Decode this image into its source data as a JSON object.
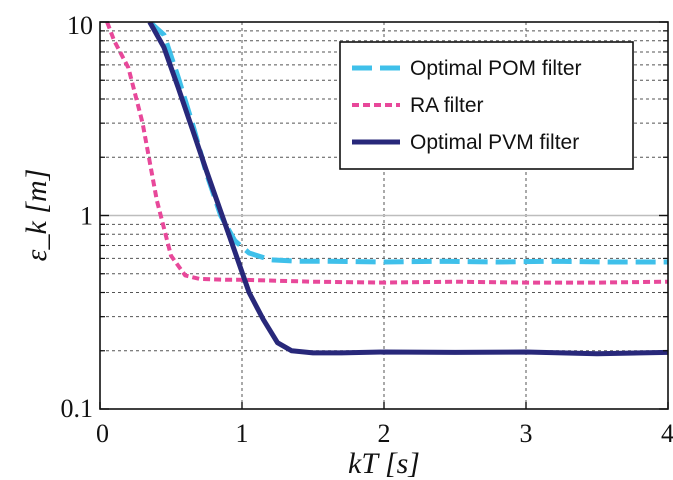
{
  "chart_data": {
    "type": "line",
    "xlabel": "kT [s]",
    "ylabel": "ε_k [m]",
    "xlim": [
      0,
      4
    ],
    "ylim": [
      0.1,
      10
    ],
    "yscale": "log",
    "grid": true,
    "legend_position": "top-right",
    "x_ticks": [
      "0",
      "1",
      "2",
      "3",
      "4"
    ],
    "y_ticks": [
      "0.1",
      "1",
      "10"
    ],
    "series": [
      {
        "name": "Optimal POM filter",
        "color": "#3fc0ea",
        "style": "dashed",
        "points": [
          [
            0.35,
            10
          ],
          [
            0.45,
            8.6
          ],
          [
            0.55,
            5.2
          ],
          [
            0.65,
            3.0
          ],
          [
            0.75,
            1.65
          ],
          [
            0.85,
            1.0
          ],
          [
            0.95,
            0.74
          ],
          [
            1.05,
            0.64
          ],
          [
            1.2,
            0.59
          ],
          [
            1.4,
            0.58
          ],
          [
            1.6,
            0.58
          ],
          [
            2.0,
            0.575
          ],
          [
            2.4,
            0.58
          ],
          [
            2.8,
            0.575
          ],
          [
            3.2,
            0.58
          ],
          [
            3.6,
            0.575
          ],
          [
            4.0,
            0.575
          ]
        ]
      },
      {
        "name": "RA filter",
        "color": "#e8489a",
        "style": "dotted",
        "points": [
          [
            0.05,
            10
          ],
          [
            0.1,
            8.0
          ],
          [
            0.2,
            5.8
          ],
          [
            0.3,
            3.0
          ],
          [
            0.4,
            1.2
          ],
          [
            0.5,
            0.62
          ],
          [
            0.6,
            0.49
          ],
          [
            0.7,
            0.47
          ],
          [
            0.9,
            0.465
          ],
          [
            1.0,
            0.465
          ],
          [
            1.5,
            0.455
          ],
          [
            2.0,
            0.45
          ],
          [
            2.5,
            0.455
          ],
          [
            3.0,
            0.45
          ],
          [
            3.5,
            0.45
          ],
          [
            4.0,
            0.455
          ]
        ]
      },
      {
        "name": "Optimal PVM filter",
        "color": "#28287a",
        "style": "solid",
        "points": [
          [
            0.35,
            10
          ],
          [
            0.45,
            7.4
          ],
          [
            0.55,
            4.6
          ],
          [
            0.65,
            2.8
          ],
          [
            0.75,
            1.7
          ],
          [
            0.85,
            1.05
          ],
          [
            0.95,
            0.65
          ],
          [
            1.05,
            0.4
          ],
          [
            1.15,
            0.29
          ],
          [
            1.25,
            0.22
          ],
          [
            1.35,
            0.2
          ],
          [
            1.5,
            0.195
          ],
          [
            1.7,
            0.195
          ],
          [
            2.0,
            0.197
          ],
          [
            2.5,
            0.196
          ],
          [
            3.0,
            0.197
          ],
          [
            3.5,
            0.193
          ],
          [
            4.0,
            0.196
          ]
        ]
      }
    ]
  }
}
